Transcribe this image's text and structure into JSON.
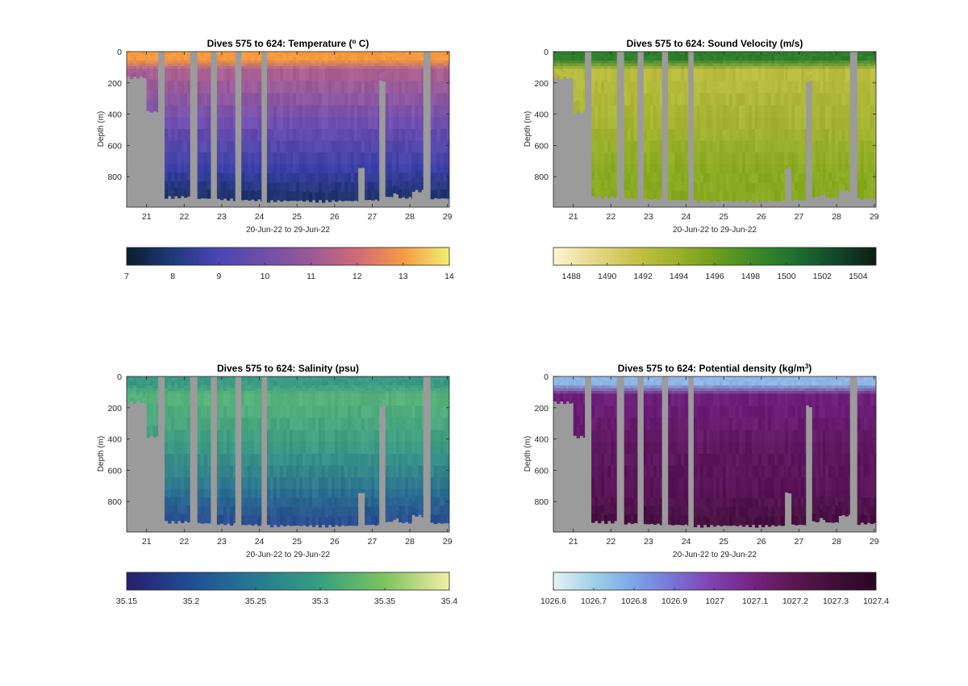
{
  "chart_data": [
    {
      "type": "heatmap",
      "title": "Dives 575 to 624: Temperature (",
      "title_sup": "o",
      "title_tail": " C)",
      "xlabel": "20-Jun-22 to 29-Jun-22",
      "ylabel": "Depth (m)",
      "x_ticks": [
        "21",
        "22",
        "23",
        "24",
        "25",
        "26",
        "27",
        "28",
        "29"
      ],
      "y_ticks": [
        "0",
        "200",
        "400",
        "600",
        "800"
      ],
      "xlim": [
        20.47,
        29.05
      ],
      "ylim": [
        995,
        0
      ],
      "colorbar": {
        "ticks": [
          "7",
          "8",
          "9",
          "10",
          "11",
          "12",
          "13",
          "14"
        ],
        "tick_values": [
          7,
          8,
          9,
          10,
          11,
          12,
          13,
          14
        ],
        "range": [
          7,
          14
        ],
        "colors": [
          "#0b1d2e",
          "#1e3a7a",
          "#4a46b5",
          "#6f4fa6",
          "#9a5a95",
          "#d06a78",
          "#f59a44",
          "#f0f070"
        ]
      },
      "profile": {
        "surface_color": "#f59a3e",
        "mixed_color": "#a85f92",
        "mid_color": "#6f4fb0",
        "deep_color": "#3a40a8",
        "bottom_color": "#0f2c4a"
      }
    },
    {
      "type": "heatmap",
      "title": "Dives 575 to 624: Sound Velocity (m/s)",
      "xlabel": "20-Jun-22 to 29-Jun-22",
      "ylabel": "Depth (m)",
      "x_ticks": [
        "21",
        "22",
        "23",
        "24",
        "25",
        "26",
        "27",
        "28",
        "29"
      ],
      "y_ticks": [
        "0",
        "200",
        "400",
        "600",
        "800"
      ],
      "xlim": [
        20.47,
        29.05
      ],
      "ylim": [
        995,
        0
      ],
      "colorbar": {
        "ticks": [
          "1488",
          "1490",
          "1492",
          "1494",
          "1496",
          "1498",
          "1500",
          "1502",
          "1504"
        ],
        "tick_values": [
          1488,
          1490,
          1492,
          1494,
          1496,
          1498,
          1500,
          1502,
          1504
        ],
        "range": [
          1487,
          1505
        ],
        "colors": [
          "#fdf6d0",
          "#e6d88a",
          "#c8c24a",
          "#9fb22a",
          "#6f9e1e",
          "#3f8a26",
          "#1e6e30",
          "#12472a",
          "#0c1e14"
        ]
      },
      "profile": {
        "surface_color": "#2f7f2c",
        "mixed_color": "#b9bc3e",
        "mid_color": "#a6b434",
        "deep_color": "#8aaa22",
        "bottom_color": "#86a81e"
      }
    },
    {
      "type": "heatmap",
      "title": "Dives 575 to 624: Salinity (psu)",
      "xlabel": "20-Jun-22 to 29-Jun-22",
      "ylabel": "Depth (m)",
      "x_ticks": [
        "21",
        "22",
        "23",
        "24",
        "25",
        "26",
        "27",
        "28",
        "29"
      ],
      "y_ticks": [
        "0",
        "200",
        "400",
        "600",
        "800"
      ],
      "xlim": [
        20.47,
        29.05
      ],
      "ylim": [
        995,
        0
      ],
      "colorbar": {
        "ticks": [
          "35.15",
          "35.2",
          "35.25",
          "35.3",
          "35.35",
          "35.4"
        ],
        "tick_values": [
          35.15,
          35.2,
          35.25,
          35.3,
          35.35,
          35.4
        ],
        "range": [
          35.15,
          35.4
        ],
        "colors": [
          "#2a1d6e",
          "#1f4f96",
          "#267a92",
          "#35a07e",
          "#7cc45e",
          "#f4eda6"
        ]
      },
      "profile": {
        "surface_color": "#3a9a86",
        "mixed_color": "#56b27a",
        "mid_color": "#3d9a84",
        "deep_color": "#2a6f92",
        "bottom_color": "#2b3a8e"
      }
    },
    {
      "type": "heatmap",
      "title": "Dives 575 to 624: Potential density (kg/m",
      "title_sup": "3",
      "title_tail": ")",
      "xlabel": "20-Jun-22 to 29-Jun-22",
      "ylabel": "Depth (m)",
      "x_ticks": [
        "21",
        "22",
        "23",
        "24",
        "25",
        "26",
        "27",
        "28",
        "29"
      ],
      "y_ticks": [
        "0",
        "200",
        "400",
        "600",
        "800"
      ],
      "xlim": [
        20.47,
        29.05
      ],
      "ylim": [
        995,
        0
      ],
      "colorbar": {
        "ticks": [
          "1026.6",
          "1026.7",
          "1026.8",
          "1026.9",
          "1027",
          "1027.1",
          "1027.2",
          "1027.3",
          "1027.4"
        ],
        "tick_values": [
          1026.6,
          1026.7,
          1026.8,
          1026.9,
          1027,
          1027.1,
          1027.2,
          1027.3,
          1027.4
        ],
        "range": [
          1026.6,
          1027.4
        ],
        "colors": [
          "#e6f2f4",
          "#9fd1e8",
          "#7aa6e8",
          "#7a70d6",
          "#7f3fae",
          "#74237e",
          "#5a1650",
          "#3f0e36",
          "#2a0724"
        ]
      },
      "profile": {
        "surface_color": "#8fb6e6",
        "mixed_color": "#6e1f7a",
        "mid_color": "#5f1860",
        "deep_color": "#571455",
        "bottom_color": "#3d0e35"
      }
    }
  ],
  "shared": {
    "gap_color": "#9b9b9b",
    "depth_profile": [
      {
        "x0": 20.47,
        "x1": 20.88,
        "bottom": 175
      },
      {
        "x0": 20.88,
        "x1": 21.0,
        "bottom": 180
      },
      {
        "x0": 21.0,
        "x1": 21.3,
        "bottom": 395
      },
      {
        "x0": 21.3,
        "x1": 21.48,
        "bottom": 0
      },
      {
        "x0": 21.48,
        "x1": 22.15,
        "bottom": 940
      },
      {
        "x0": 22.15,
        "x1": 22.35,
        "bottom": 0
      },
      {
        "x0": 22.35,
        "x1": 22.7,
        "bottom": 950
      },
      {
        "x0": 22.7,
        "x1": 22.87,
        "bottom": 0
      },
      {
        "x0": 22.87,
        "x1": 23.35,
        "bottom": 955
      },
      {
        "x0": 23.35,
        "x1": 23.52,
        "bottom": 0
      },
      {
        "x0": 23.52,
        "x1": 24.05,
        "bottom": 960
      },
      {
        "x0": 24.05,
        "x1": 24.2,
        "bottom": 0
      },
      {
        "x0": 24.2,
        "x1": 26.62,
        "bottom": 965
      },
      {
        "x0": 26.62,
        "x1": 26.8,
        "bottom": 755
      },
      {
        "x0": 26.8,
        "x1": 27.18,
        "bottom": 960
      },
      {
        "x0": 27.18,
        "x1": 27.35,
        "bottom": 200
      },
      {
        "x0": 27.35,
        "x1": 27.55,
        "bottom": 940
      },
      {
        "x0": 27.55,
        "x1": 27.7,
        "bottom": 920
      },
      {
        "x0": 27.7,
        "x1": 28.05,
        "bottom": 945
      },
      {
        "x0": 28.05,
        "x1": 28.35,
        "bottom": 900
      },
      {
        "x0": 28.35,
        "x1": 28.55,
        "bottom": 0
      },
      {
        "x0": 28.55,
        "x1": 29.05,
        "bottom": 950
      }
    ]
  }
}
